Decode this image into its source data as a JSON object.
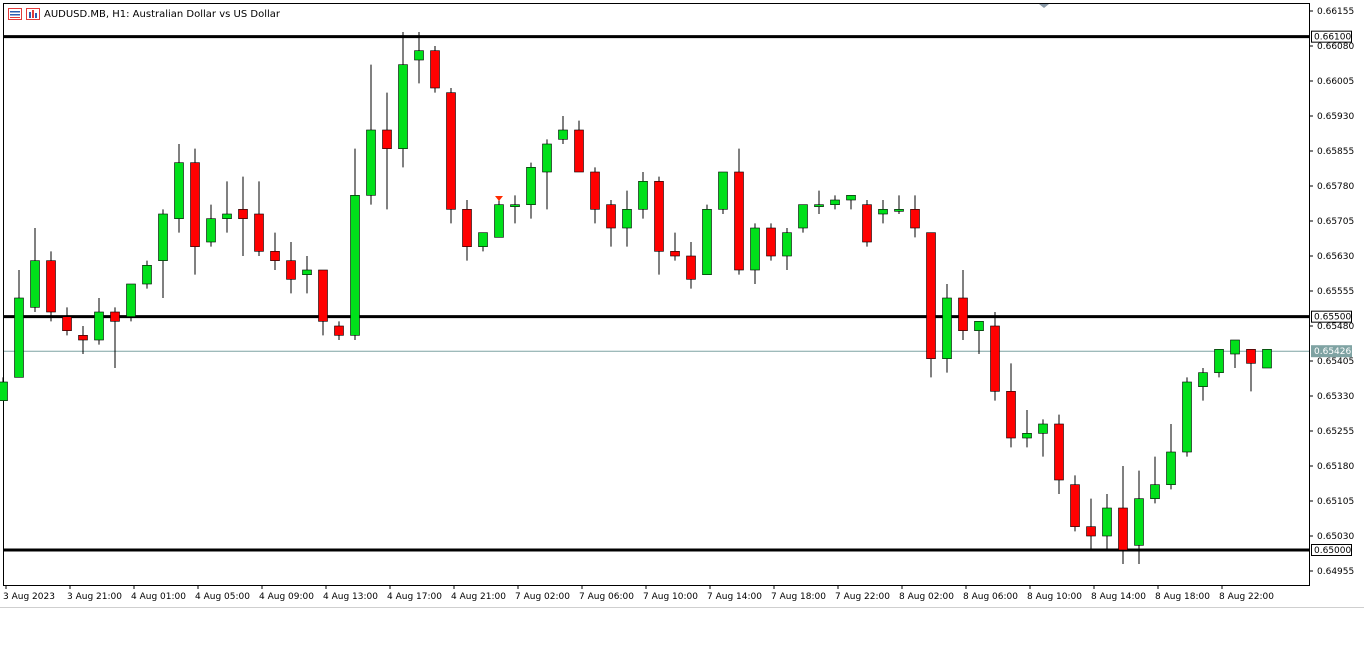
{
  "header": {
    "symbol_line": "AUDUSD.MB, H1:  Australian Dollar vs US Dollar"
  },
  "colors": {
    "bull": "#00e01a",
    "bear": "#ff0000",
    "outline": "#000000",
    "level_line": "#000000",
    "current_price_line": "#7fa3a3",
    "background": "#ffffff"
  },
  "chart_data": {
    "type": "candlestick",
    "title": "AUDUSD.MB, H1:  Australian Dollar vs US Dollar",
    "ylim": [
      0.64925,
      0.6617
    ],
    "y_ticks": [
      "0.66155",
      "0.66080",
      "0.66005",
      "0.65930",
      "0.65855",
      "0.65780",
      "0.65705",
      "0.65630",
      "0.65555",
      "0.65480",
      "0.65405",
      "0.65330",
      "0.65255",
      "0.65180",
      "0.65105",
      "0.65030",
      "0.64955"
    ],
    "x_tick_labels": [
      "3 Aug 2023",
      "3 Aug 21:00",
      "4 Aug 01:00",
      "4 Aug 05:00",
      "4 Aug 09:00",
      "4 Aug 13:00",
      "4 Aug 17:00",
      "4 Aug 21:00",
      "7 Aug 02:00",
      "7 Aug 06:00",
      "7 Aug 10:00",
      "7 Aug 14:00",
      "7 Aug 18:00",
      "7 Aug 22:00",
      "8 Aug 02:00",
      "8 Aug 06:00",
      "8 Aug 10:00",
      "8 Aug 14:00",
      "8 Aug 18:00",
      "8 Aug 22:00"
    ],
    "horizontal_levels": [
      "0.66100",
      "0.65500",
      "0.65000"
    ],
    "current_price": "0.65426",
    "candles": [
      {
        "o": 0.6532,
        "h": 0.6537,
        "l": 0.6532,
        "c": 0.6536
      },
      {
        "o": 0.6537,
        "h": 0.656,
        "l": 0.6537,
        "c": 0.6554
      },
      {
        "o": 0.6552,
        "h": 0.6569,
        "l": 0.6551,
        "c": 0.6562
      },
      {
        "o": 0.6562,
        "h": 0.6564,
        "l": 0.6549,
        "c": 0.6551
      },
      {
        "o": 0.655,
        "h": 0.6552,
        "l": 0.6546,
        "c": 0.6547
      },
      {
        "o": 0.6546,
        "h": 0.6548,
        "l": 0.6542,
        "c": 0.6545
      },
      {
        "o": 0.6545,
        "h": 0.6554,
        "l": 0.6544,
        "c": 0.6551
      },
      {
        "o": 0.6551,
        "h": 0.6552,
        "l": 0.6539,
        "c": 0.6549
      },
      {
        "o": 0.655,
        "h": 0.6557,
        "l": 0.6549,
        "c": 0.6557
      },
      {
        "o": 0.6557,
        "h": 0.6562,
        "l": 0.6556,
        "c": 0.6561
      },
      {
        "o": 0.6562,
        "h": 0.6573,
        "l": 0.6554,
        "c": 0.6572
      },
      {
        "o": 0.6571,
        "h": 0.6587,
        "l": 0.6568,
        "c": 0.6583
      },
      {
        "o": 0.6583,
        "h": 0.6586,
        "l": 0.6559,
        "c": 0.6565
      },
      {
        "o": 0.6566,
        "h": 0.6574,
        "l": 0.6565,
        "c": 0.6571
      },
      {
        "o": 0.6571,
        "h": 0.6579,
        "l": 0.6568,
        "c": 0.6572
      },
      {
        "o": 0.6573,
        "h": 0.658,
        "l": 0.6563,
        "c": 0.6571
      },
      {
        "o": 0.6572,
        "h": 0.6579,
        "l": 0.6563,
        "c": 0.6564
      },
      {
        "o": 0.6564,
        "h": 0.6568,
        "l": 0.656,
        "c": 0.6562
      },
      {
        "o": 0.6562,
        "h": 0.6566,
        "l": 0.6555,
        "c": 0.6558
      },
      {
        "o": 0.6559,
        "h": 0.6563,
        "l": 0.6555,
        "c": 0.656
      },
      {
        "o": 0.656,
        "h": 0.656,
        "l": 0.6546,
        "c": 0.6549
      },
      {
        "o": 0.6548,
        "h": 0.6549,
        "l": 0.6545,
        "c": 0.6546
      },
      {
        "o": 0.6546,
        "h": 0.6586,
        "l": 0.6545,
        "c": 0.6576
      },
      {
        "o": 0.6576,
        "h": 0.6604,
        "l": 0.6574,
        "c": 0.659
      },
      {
        "o": 0.659,
        "h": 0.6598,
        "l": 0.6573,
        "c": 0.6586
      },
      {
        "o": 0.6586,
        "h": 0.6611,
        "l": 0.6582,
        "c": 0.6604
      },
      {
        "o": 0.6605,
        "h": 0.6611,
        "l": 0.66,
        "c": 0.6607
      },
      {
        "o": 0.6607,
        "h": 0.6608,
        "l": 0.6598,
        "c": 0.6599
      },
      {
        "o": 0.6598,
        "h": 0.6599,
        "l": 0.657,
        "c": 0.6573
      },
      {
        "o": 0.6573,
        "h": 0.6575,
        "l": 0.6562,
        "c": 0.6565
      },
      {
        "o": 0.6565,
        "h": 0.6568,
        "l": 0.6564,
        "c": 0.6568
      },
      {
        "o": 0.6567,
        "h": 0.6575,
        "l": 0.6567,
        "c": 0.6574
      },
      {
        "o": 0.6574,
        "h": 0.6576,
        "l": 0.657,
        "c": 0.6574
      },
      {
        "o": 0.6574,
        "h": 0.6583,
        "l": 0.6571,
        "c": 0.6582
      },
      {
        "o": 0.6581,
        "h": 0.6588,
        "l": 0.6573,
        "c": 0.6587
      },
      {
        "o": 0.6588,
        "h": 0.6593,
        "l": 0.6587,
        "c": 0.659
      },
      {
        "o": 0.659,
        "h": 0.6592,
        "l": 0.6581,
        "c": 0.6581
      },
      {
        "o": 0.6581,
        "h": 0.6582,
        "l": 0.657,
        "c": 0.6573
      },
      {
        "o": 0.6574,
        "h": 0.6575,
        "l": 0.6565,
        "c": 0.6569
      },
      {
        "o": 0.6569,
        "h": 0.6577,
        "l": 0.6565,
        "c": 0.6573
      },
      {
        "o": 0.6573,
        "h": 0.6581,
        "l": 0.6571,
        "c": 0.6579
      },
      {
        "o": 0.6579,
        "h": 0.658,
        "l": 0.6559,
        "c": 0.6564
      },
      {
        "o": 0.6564,
        "h": 0.6568,
        "l": 0.6562,
        "c": 0.6563
      },
      {
        "o": 0.6563,
        "h": 0.6566,
        "l": 0.6556,
        "c": 0.6558
      },
      {
        "o": 0.6559,
        "h": 0.6574,
        "l": 0.6559,
        "c": 0.6573
      },
      {
        "o": 0.6573,
        "h": 0.6581,
        "l": 0.6572,
        "c": 0.6581
      },
      {
        "o": 0.6581,
        "h": 0.6586,
        "l": 0.6559,
        "c": 0.656
      },
      {
        "o": 0.656,
        "h": 0.657,
        "l": 0.6557,
        "c": 0.6569
      },
      {
        "o": 0.6569,
        "h": 0.657,
        "l": 0.6562,
        "c": 0.6563
      },
      {
        "o": 0.6563,
        "h": 0.6569,
        "l": 0.656,
        "c": 0.6568
      },
      {
        "o": 0.6569,
        "h": 0.6574,
        "l": 0.6568,
        "c": 0.6574
      },
      {
        "o": 0.6574,
        "h": 0.6577,
        "l": 0.6572,
        "c": 0.6574
      },
      {
        "o": 0.6574,
        "h": 0.6576,
        "l": 0.6573,
        "c": 0.6575
      },
      {
        "o": 0.6575,
        "h": 0.6576,
        "l": 0.6573,
        "c": 0.6576
      },
      {
        "o": 0.6574,
        "h": 0.6575,
        "l": 0.6565,
        "c": 0.6566
      },
      {
        "o": 0.6572,
        "h": 0.6575,
        "l": 0.657,
        "c": 0.6573
      },
      {
        "o": 0.6573,
        "h": 0.6576,
        "l": 0.6572,
        "c": 0.6573
      },
      {
        "o": 0.6573,
        "h": 0.6576,
        "l": 0.6567,
        "c": 0.6569
      },
      {
        "o": 0.6568,
        "h": 0.6568,
        "l": 0.6537,
        "c": 0.6541
      },
      {
        "o": 0.6541,
        "h": 0.6557,
        "l": 0.6538,
        "c": 0.6554
      },
      {
        "o": 0.6554,
        "h": 0.656,
        "l": 0.6545,
        "c": 0.6547
      },
      {
        "o": 0.6547,
        "h": 0.6548,
        "l": 0.6542,
        "c": 0.6549
      },
      {
        "o": 0.6548,
        "h": 0.6551,
        "l": 0.6532,
        "c": 0.6534
      },
      {
        "o": 0.6534,
        "h": 0.654,
        "l": 0.6522,
        "c": 0.6524
      },
      {
        "o": 0.6524,
        "h": 0.653,
        "l": 0.6522,
        "c": 0.6525
      },
      {
        "o": 0.6525,
        "h": 0.6528,
        "l": 0.652,
        "c": 0.6527
      },
      {
        "o": 0.6527,
        "h": 0.6529,
        "l": 0.6512,
        "c": 0.6515
      },
      {
        "o": 0.6514,
        "h": 0.6516,
        "l": 0.6504,
        "c": 0.6505
      },
      {
        "o": 0.6505,
        "h": 0.6511,
        "l": 0.65,
        "c": 0.6503
      },
      {
        "o": 0.6503,
        "h": 0.6512,
        "l": 0.65,
        "c": 0.6509
      },
      {
        "o": 0.6509,
        "h": 0.6518,
        "l": 0.6497,
        "c": 0.65
      },
      {
        "o": 0.6501,
        "h": 0.6517,
        "l": 0.6497,
        "c": 0.6511
      },
      {
        "o": 0.6511,
        "h": 0.652,
        "l": 0.651,
        "c": 0.6514
      },
      {
        "o": 0.6514,
        "h": 0.6527,
        "l": 0.6513,
        "c": 0.6521
      },
      {
        "o": 0.6521,
        "h": 0.6537,
        "l": 0.652,
        "c": 0.6536
      },
      {
        "o": 0.6535,
        "h": 0.6539,
        "l": 0.6532,
        "c": 0.6538
      },
      {
        "o": 0.6538,
        "h": 0.6543,
        "l": 0.6537,
        "c": 0.6543
      },
      {
        "o": 0.6542,
        "h": 0.6545,
        "l": 0.6539,
        "c": 0.6545
      },
      {
        "o": 0.6543,
        "h": 0.6543,
        "l": 0.6534,
        "c": 0.654
      },
      {
        "o": 0.6539,
        "h": 0.6543,
        "l": 0.6539,
        "c": 0.6543
      }
    ],
    "grid": false,
    "legend": "none"
  }
}
